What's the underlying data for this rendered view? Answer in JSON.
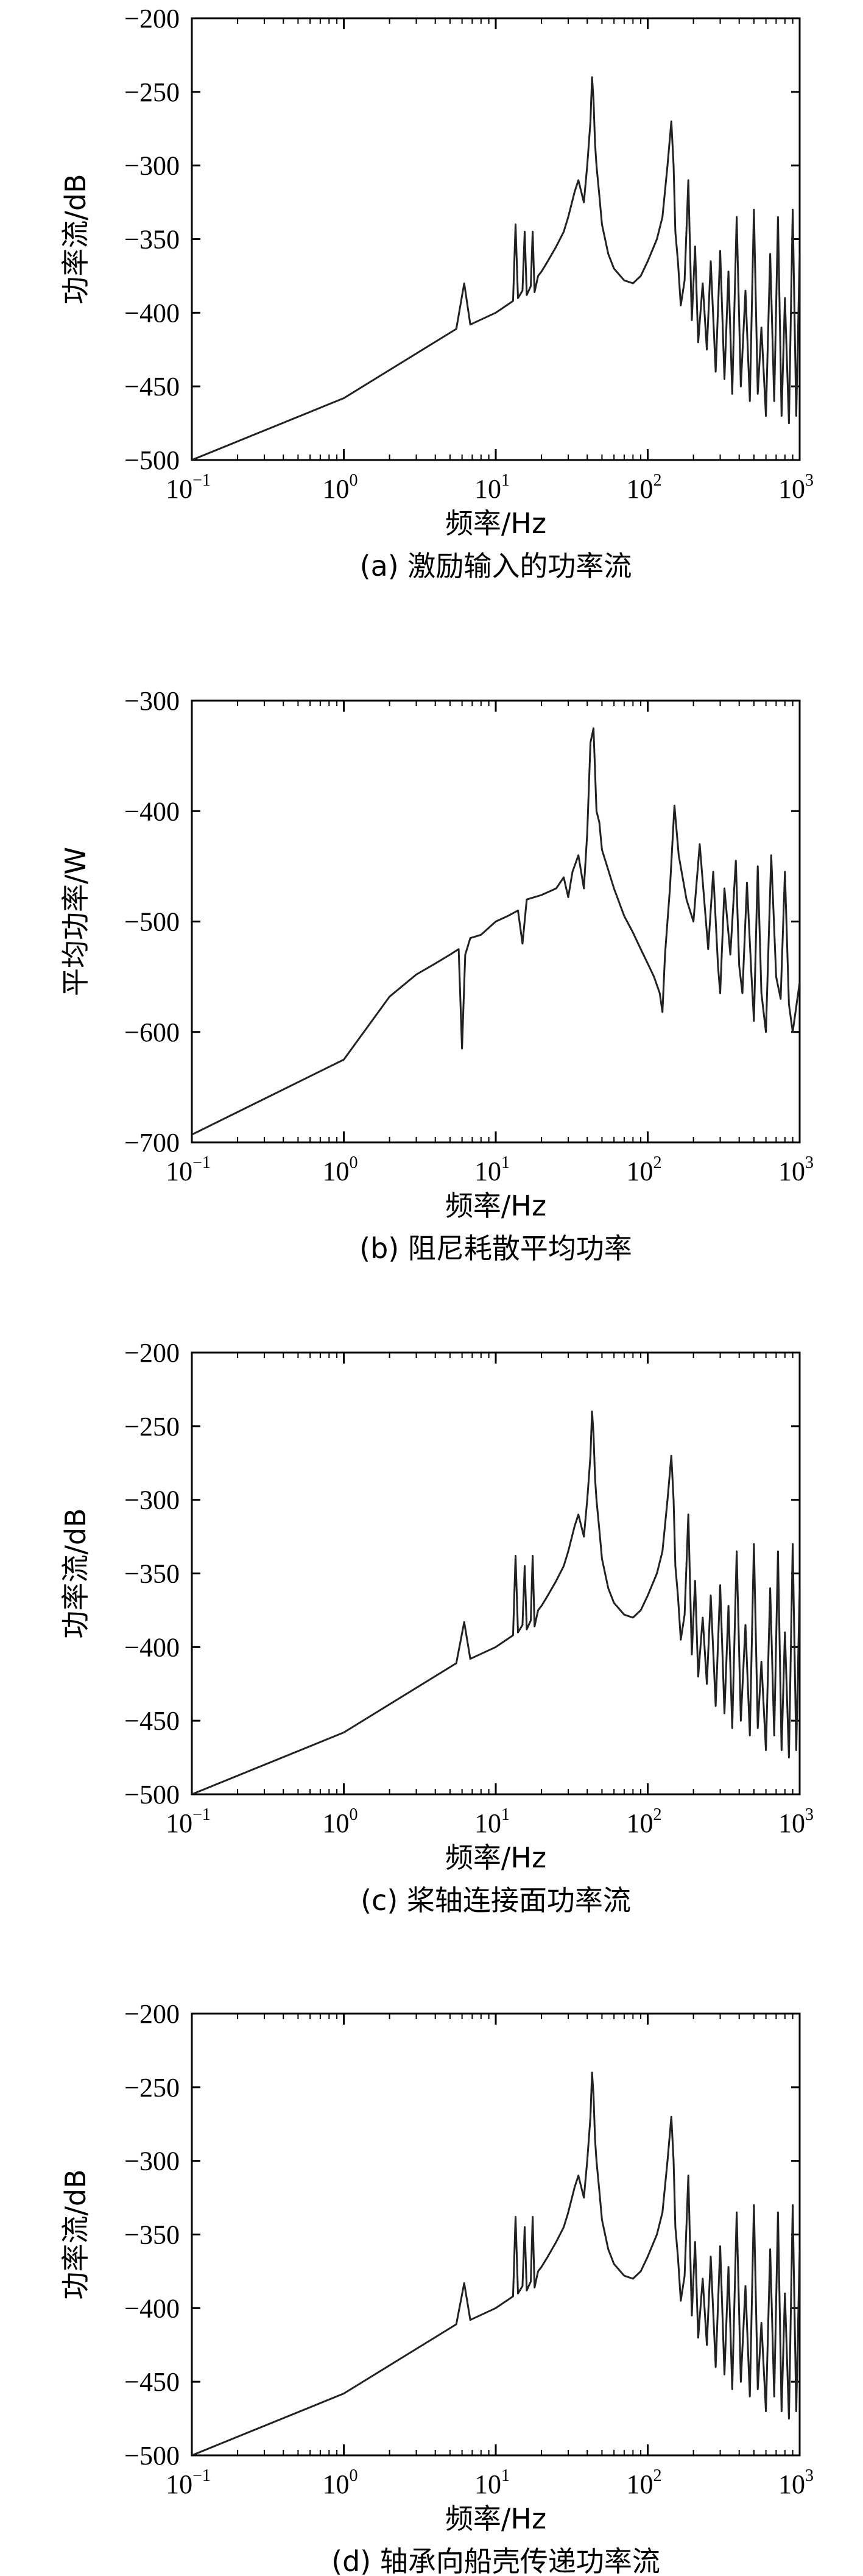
{
  "chart_data": [
    {
      "type": "line",
      "panel": "a",
      "caption": "(a) 激励输入的功率流",
      "xlabel": "频率/Hz",
      "ylabel": "功率流/dB",
      "xscale": "log",
      "xlim": [
        0.1,
        1000
      ],
      "ylim": [
        -500,
        -200
      ],
      "yticks": [
        "−200",
        "−250",
        "−300",
        "−350",
        "−400",
        "−450",
        "−500"
      ],
      "xticks": [
        {
          "base": "10",
          "exp": "−1"
        },
        {
          "base": "10",
          "exp": "0"
        },
        {
          "base": "10",
          "exp": "1"
        },
        {
          "base": "10",
          "exp": "2"
        },
        {
          "base": "10",
          "exp": "3"
        }
      ],
      "series": [
        {
          "name": "激励输入的功率流",
          "x": [
            0.1,
            1,
            5.5,
            6.2,
            6.8,
            10,
            13,
            13.5,
            14,
            15,
            15.5,
            16,
            17,
            17.5,
            18,
            19,
            20,
            22,
            25,
            28,
            30,
            33,
            35,
            38,
            40,
            42,
            43,
            44,
            45,
            46,
            48,
            50,
            55,
            60,
            70,
            80,
            90,
            100,
            115,
            125,
            135,
            143,
            148,
            152,
            158,
            165,
            175,
            185,
            195,
            205,
            215,
            230,
            245,
            260,
            280,
            300,
            320,
            340,
            360,
            385,
            410,
            440,
            470,
            500,
            530,
            560,
            600,
            640,
            680,
            720,
            760,
            800,
            850,
            900,
            950,
            1000
          ],
          "y": [
            -500,
            -458,
            -411,
            -380,
            -408,
            -400,
            -392,
            -340,
            -390,
            -385,
            -345,
            -388,
            -382,
            -345,
            -386,
            -375,
            -372,
            -365,
            -355,
            -345,
            -335,
            -318,
            -310,
            -325,
            -300,
            -270,
            -240,
            -255,
            -285,
            -300,
            -320,
            -340,
            -360,
            -370,
            -378,
            -380,
            -375,
            -365,
            -350,
            -335,
            -300,
            -270,
            -300,
            -345,
            -365,
            -395,
            -378,
            -310,
            -405,
            -355,
            -420,
            -380,
            -425,
            -365,
            -440,
            -358,
            -445,
            -372,
            -455,
            -335,
            -450,
            -385,
            -460,
            -330,
            -455,
            -410,
            -470,
            -360,
            -460,
            -335,
            -470,
            -390,
            -475,
            -330,
            -470,
            -360
          ]
        }
      ]
    },
    {
      "type": "line",
      "panel": "b",
      "caption": "(b) 阻尼耗散平均功率",
      "xlabel": "频率/Hz",
      "ylabel": "平均功率/W",
      "xscale": "log",
      "xlim": [
        0.1,
        1000
      ],
      "ylim": [
        -700,
        -300
      ],
      "yticks": [
        "−300",
        "−400",
        "−500",
        "−600",
        "−700"
      ],
      "xticks": [
        {
          "base": "10",
          "exp": "−1"
        },
        {
          "base": "10",
          "exp": "0"
        },
        {
          "base": "10",
          "exp": "1"
        },
        {
          "base": "10",
          "exp": "2"
        },
        {
          "base": "10",
          "exp": "3"
        }
      ],
      "series": [
        {
          "name": "阻尼耗散平均功率",
          "x": [
            0.1,
            1,
            2,
            3,
            4,
            5,
            5.7,
            6,
            6.3,
            6.8,
            8,
            10,
            12,
            14,
            15,
            16,
            20,
            25,
            28,
            30,
            32,
            35,
            38,
            40,
            42,
            44,
            46,
            48,
            50,
            60,
            70,
            80,
            90,
            100,
            110,
            120,
            125,
            130,
            140,
            150,
            160,
            180,
            200,
            220,
            250,
            270,
            290,
            300,
            320,
            350,
            380,
            400,
            420,
            450,
            480,
            500,
            530,
            560,
            600,
            650,
            700,
            750,
            800,
            850,
            900,
            1000
          ],
          "y": [
            -693,
            -625,
            -568,
            -548,
            -538,
            -530,
            -525,
            -615,
            -530,
            -515,
            -512,
            -500,
            -495,
            -490,
            -520,
            -480,
            -476,
            -470,
            -460,
            -478,
            -455,
            -440,
            -470,
            -420,
            -338,
            -325,
            -400,
            -410,
            -435,
            -470,
            -495,
            -510,
            -525,
            -538,
            -550,
            -565,
            -582,
            -530,
            -470,
            -395,
            -440,
            -480,
            -500,
            -430,
            -525,
            -455,
            -540,
            -565,
            -470,
            -530,
            -445,
            -540,
            -565,
            -465,
            -545,
            -590,
            -450,
            -565,
            -600,
            -440,
            -550,
            -570,
            -455,
            -575,
            -600,
            -555
          ]
        }
      ]
    },
    {
      "type": "line",
      "panel": "c",
      "caption": "(c) 桨轴连接面功率流",
      "xlabel": "频率/Hz",
      "ylabel": "功率流/dB",
      "xscale": "log",
      "xlim": [
        0.1,
        1000
      ],
      "ylim": [
        -500,
        -200
      ],
      "yticks": [
        "−200",
        "−250",
        "−300",
        "−350",
        "−400",
        "−450",
        "−500"
      ],
      "xticks": [
        {
          "base": "10",
          "exp": "−1"
        },
        {
          "base": "10",
          "exp": "0"
        },
        {
          "base": "10",
          "exp": "1"
        },
        {
          "base": "10",
          "exp": "2"
        },
        {
          "base": "10",
          "exp": "3"
        }
      ],
      "series": [
        {
          "name": "桨轴连接面功率流",
          "x": [
            0.1,
            1,
            5.5,
            6.2,
            6.8,
            10,
            13,
            13.5,
            14,
            15,
            15.5,
            16,
            17,
            17.5,
            18,
            19,
            20,
            22,
            25,
            28,
            30,
            33,
            35,
            38,
            40,
            42,
            43,
            44,
            45,
            46,
            48,
            50,
            55,
            60,
            70,
            80,
            90,
            100,
            115,
            125,
            135,
            143,
            148,
            152,
            158,
            165,
            175,
            185,
            195,
            205,
            215,
            230,
            245,
            260,
            280,
            300,
            320,
            340,
            360,
            385,
            410,
            440,
            470,
            500,
            530,
            560,
            600,
            640,
            680,
            720,
            760,
            800,
            850,
            900,
            950,
            1000
          ],
          "y": [
            -500,
            -458,
            -411,
            -383,
            -408,
            -400,
            -392,
            -338,
            -390,
            -385,
            -345,
            -388,
            -382,
            -338,
            -386,
            -375,
            -372,
            -365,
            -355,
            -345,
            -335,
            -318,
            -310,
            -325,
            -300,
            -270,
            -240,
            -255,
            -285,
            -300,
            -320,
            -340,
            -360,
            -370,
            -378,
            -380,
            -375,
            -365,
            -350,
            -335,
            -300,
            -270,
            -300,
            -345,
            -365,
            -395,
            -378,
            -310,
            -405,
            -355,
            -420,
            -380,
            -425,
            -365,
            -440,
            -358,
            -445,
            -372,
            -455,
            -335,
            -450,
            -385,
            -460,
            -330,
            -455,
            -410,
            -470,
            -360,
            -460,
            -335,
            -470,
            -390,
            -475,
            -330,
            -470,
            -360
          ]
        }
      ]
    },
    {
      "type": "line",
      "panel": "d",
      "caption": "(d) 轴承向船壳传递功率流",
      "xlabel": "频率/Hz",
      "ylabel": "功率流/dB",
      "xscale": "log",
      "xlim": [
        0.1,
        1000
      ],
      "ylim": [
        -500,
        -200
      ],
      "yticks": [
        "−200",
        "−250",
        "−300",
        "−350",
        "−400",
        "−450",
        "−500"
      ],
      "xticks": [
        {
          "base": "10",
          "exp": "−1"
        },
        {
          "base": "10",
          "exp": "0"
        },
        {
          "base": "10",
          "exp": "1"
        },
        {
          "base": "10",
          "exp": "2"
        },
        {
          "base": "10",
          "exp": "3"
        }
      ],
      "series": [
        {
          "name": "轴承向船壳传递功率流",
          "x": [
            0.1,
            1,
            5.5,
            6.2,
            6.8,
            10,
            13,
            13.5,
            14,
            15,
            15.5,
            16,
            17,
            17.5,
            18,
            19,
            20,
            22,
            25,
            28,
            30,
            33,
            35,
            38,
            40,
            42,
            43,
            44,
            45,
            46,
            48,
            50,
            55,
            60,
            70,
            80,
            90,
            100,
            115,
            125,
            135,
            143,
            148,
            152,
            158,
            165,
            175,
            185,
            195,
            205,
            215,
            230,
            245,
            260,
            280,
            300,
            320,
            340,
            360,
            385,
            410,
            440,
            470,
            500,
            530,
            560,
            600,
            640,
            680,
            720,
            760,
            800,
            850,
            900,
            950,
            1000
          ],
          "y": [
            -500,
            -458,
            -411,
            -383,
            -408,
            -400,
            -392,
            -338,
            -390,
            -385,
            -345,
            -388,
            -382,
            -338,
            -386,
            -375,
            -372,
            -365,
            -355,
            -345,
            -335,
            -318,
            -310,
            -325,
            -300,
            -270,
            -240,
            -255,
            -285,
            -300,
            -320,
            -340,
            -360,
            -370,
            -378,
            -380,
            -375,
            -365,
            -350,
            -335,
            -300,
            -270,
            -300,
            -345,
            -365,
            -395,
            -378,
            -310,
            -405,
            -355,
            -420,
            -380,
            -425,
            -365,
            -440,
            -358,
            -445,
            -372,
            -455,
            -335,
            -450,
            -385,
            -460,
            -330,
            -455,
            -410,
            -470,
            -360,
            -460,
            -335,
            -470,
            -390,
            -475,
            -330,
            -470,
            -360
          ]
        }
      ]
    }
  ]
}
